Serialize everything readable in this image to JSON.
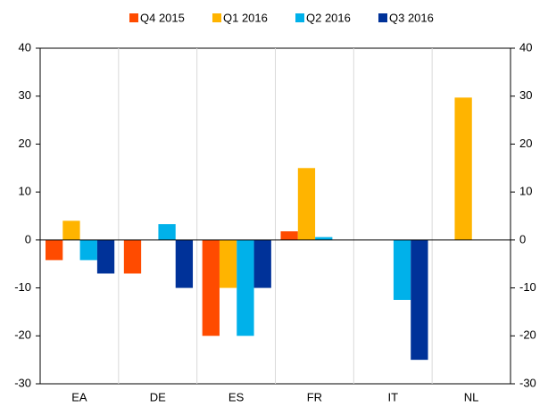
{
  "chart_data": {
    "type": "bar",
    "categories": [
      "EA",
      "DE",
      "ES",
      "FR",
      "IT",
      "NL"
    ],
    "series": [
      {
        "name": "Q4 2015",
        "color": "#ff4b00",
        "values": [
          -4.2,
          -7,
          -20,
          1.8,
          0,
          0
        ]
      },
      {
        "name": "Q1 2016",
        "color": "#ffb400",
        "values": [
          4,
          0,
          -10,
          15,
          0,
          29.7
        ]
      },
      {
        "name": "Q2 2016",
        "color": "#00b1ea",
        "values": [
          -4.2,
          3.3,
          -20,
          0.6,
          -12.5,
          0
        ]
      },
      {
        "name": "Q3 2016",
        "color": "#003299",
        "values": [
          -7,
          -10,
          -10,
          0,
          -25,
          0
        ]
      }
    ],
    "ylim": [
      -30,
      40
    ],
    "yticks": [
      -30,
      -20,
      -10,
      0,
      10,
      20,
      30,
      40
    ],
    "y2lim": [
      -30,
      40
    ],
    "y2ticks": [
      -30,
      -20,
      -10,
      0,
      10,
      20,
      30,
      40
    ],
    "legend": "top"
  }
}
